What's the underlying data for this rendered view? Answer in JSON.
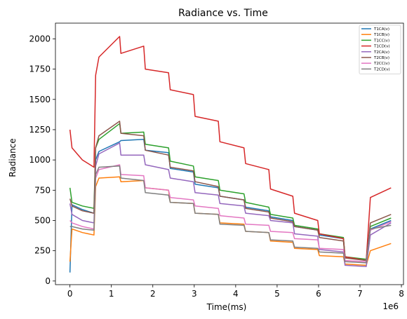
{
  "chart_data": {
    "type": "line",
    "title": "Radiance vs. Time",
    "xlabel": "Time(ms)",
    "ylabel": "Radiance",
    "x_multiplier_label": "1e6",
    "xlim": [
      -350000,
      8050000
    ],
    "ylim": [
      -30,
      2130
    ],
    "xticks": [
      0,
      1000000,
      2000000,
      3000000,
      4000000,
      5000000,
      6000000,
      7000000,
      8000000
    ],
    "xtick_labels": [
      "0",
      "1",
      "2",
      "3",
      "4",
      "5",
      "6",
      "7",
      "8"
    ],
    "yticks": [
      0,
      250,
      500,
      750,
      1000,
      1250,
      1500,
      1750,
      2000
    ],
    "ytick_labels": [
      "0",
      "250",
      "500",
      "750",
      "1000",
      "1250",
      "1500",
      "1750",
      "2000"
    ],
    "grid": false,
    "legend_position": "top-right",
    "x": [
      0,
      50000,
      300000,
      580000,
      620000,
      700000,
      1200000,
      1230000,
      1780000,
      1820000,
      2380000,
      2420000,
      2980000,
      3020000,
      3580000,
      3620000,
      4200000,
      4240000,
      4800000,
      4840000,
      5380000,
      5420000,
      5980000,
      6020000,
      6600000,
      6640000,
      7150000,
      7250000,
      7750000
    ],
    "series": [
      {
        "name": "T1CA(v)",
        "color": "#1f77b4",
        "values": [
          70,
          630,
          590,
          560,
          1000,
          1070,
          1150,
          1160,
          1170,
          1080,
          1060,
          930,
          900,
          800,
          770,
          700,
          670,
          610,
          580,
          530,
          500,
          450,
          420,
          380,
          350,
          200,
          170,
          430,
          500
        ]
      },
      {
        "name": "T1CB(v)",
        "color": "#ff7f0e",
        "values": [
          160,
          430,
          400,
          380,
          780,
          850,
          860,
          820,
          830,
          770,
          750,
          650,
          640,
          560,
          550,
          480,
          470,
          410,
          400,
          330,
          320,
          270,
          260,
          210,
          200,
          140,
          130,
          250,
          310
        ]
      },
      {
        "name": "T1CC(v)",
        "color": "#2ca02c",
        "values": [
          770,
          650,
          620,
          600,
          1100,
          1170,
          1300,
          1220,
          1230,
          1130,
          1100,
          990,
          950,
          860,
          830,
          750,
          720,
          650,
          610,
          550,
          520,
          460,
          430,
          390,
          360,
          200,
          180,
          450,
          520
        ]
      },
      {
        "name": "T1CD(v)",
        "color": "#d62728",
        "values": [
          1250,
          1100,
          1000,
          940,
          1700,
          1850,
          2020,
          1880,
          1940,
          1750,
          1720,
          1580,
          1540,
          1360,
          1320,
          1150,
          1100,
          970,
          920,
          760,
          700,
          560,
          500,
          390,
          350,
          200,
          170,
          690,
          770
        ]
      },
      {
        "name": "T2CA(v)",
        "color": "#9467bd",
        "values": [
          640,
          550,
          500,
          480,
          950,
          1050,
          1140,
          1040,
          1040,
          960,
          920,
          850,
          820,
          730,
          710,
          640,
          620,
          560,
          540,
          500,
          480,
          390,
          370,
          260,
          240,
          130,
          120,
          380,
          480
        ]
      },
      {
        "name": "T2CB(v)",
        "color": "#8c564b",
        "values": [
          680,
          620,
          580,
          560,
          1100,
          1200,
          1320,
          1220,
          1200,
          1080,
          1040,
          940,
          910,
          820,
          780,
          700,
          670,
          600,
          570,
          520,
          490,
          450,
          420,
          360,
          330,
          190,
          170,
          480,
          550
        ]
      },
      {
        "name": "T2CC(v)",
        "color": "#e377c2",
        "values": [
          500,
          480,
          450,
          430,
          850,
          920,
          960,
          880,
          870,
          770,
          750,
          690,
          670,
          620,
          600,
          540,
          520,
          470,
          460,
          410,
          400,
          350,
          340,
          270,
          260,
          170,
          160,
          420,
          490
        ]
      },
      {
        "name": "T2CD(v)",
        "color": "#7f7f7f",
        "values": [
          450,
          450,
          430,
          420,
          880,
          940,
          950,
          850,
          830,
          730,
          710,
          650,
          640,
          560,
          550,
          470,
          460,
          410,
          400,
          340,
          330,
          280,
          270,
          240,
          230,
          160,
          150,
          430,
          460
        ]
      }
    ]
  }
}
